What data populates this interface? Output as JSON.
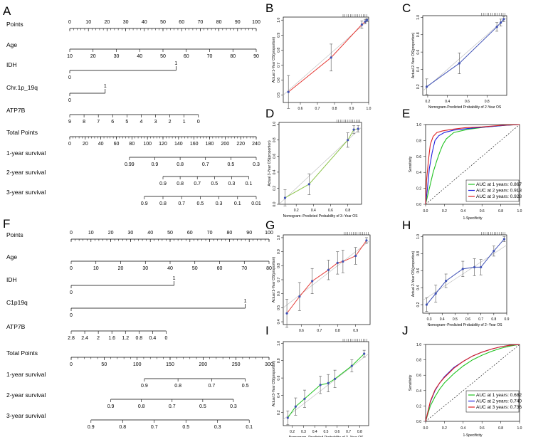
{
  "panel_letters": [
    "A",
    "B",
    "C",
    "D",
    "E",
    "F",
    "G",
    "H",
    "I",
    "J"
  ],
  "chart_data": [
    {
      "panel": "A",
      "type": "nomogram",
      "rows": [
        {
          "name": "Points",
          "from": 0,
          "to": 100,
          "ticks": [
            "0",
            "10",
            "20",
            "30",
            "40",
            "50",
            "60",
            "70",
            "80",
            "90",
            "100"
          ],
          "minor": true
        },
        {
          "name": "Age",
          "from": 0,
          "to": 100,
          "ticks": [
            "10",
            "20",
            "30",
            "40",
            "50",
            "60",
            "70",
            "80",
            "90"
          ]
        },
        {
          "name": "IDH",
          "bar": true,
          "low": "0",
          "high": "1",
          "from": 0,
          "to": 57
        },
        {
          "name": "Chr.1p_19q",
          "bar": true,
          "low": "0",
          "high": "1",
          "from": 0,
          "to": 19
        },
        {
          "name": "ATP7B",
          "from": 0,
          "to": 69,
          "ticks": [
            "9",
            "8",
            "7",
            "6",
            "5",
            "4",
            "3",
            "2",
            "1",
            "0"
          ]
        },
        {
          "name": "Total Points",
          "from": 0,
          "to": 100,
          "ticks": [
            "0",
            "20",
            "40",
            "60",
            "80",
            "100",
            "120",
            "140",
            "160",
            "180",
            "200",
            "220",
            "240"
          ],
          "minor": true
        },
        {
          "name": "1-year survival",
          "from": 32,
          "to": 100,
          "ticks": [
            "0.99",
            "0.9",
            "0.8",
            "0.7",
            "0.5",
            "0.3"
          ]
        },
        {
          "name": "2-year survival",
          "from": 50,
          "to": 96,
          "ticks": [
            "0.9",
            "0.8",
            "0.7",
            "0.5",
            "0.3",
            "0.1"
          ]
        },
        {
          "name": "3-year survival",
          "from": 40,
          "to": 100,
          "ticks": [
            "0.9",
            "0.8",
            "0.7",
            "0.5",
            "0.3",
            "0.1",
            "0.01"
          ]
        }
      ]
    },
    {
      "panel": "B",
      "type": "line",
      "x": [
        0.53,
        0.78,
        0.96,
        0.98,
        0.99
      ],
      "y": [
        0.52,
        0.75,
        0.97,
        0.99,
        1.0
      ],
      "err": [
        0.11,
        0.09,
        0.025,
        0.015,
        0.01
      ],
      "xlim": [
        0.5,
        1.0
      ],
      "ylim": [
        0.45,
        1.02
      ],
      "xticks": [
        0.6,
        0.7,
        0.8,
        0.9,
        1.0
      ],
      "yticks": [
        0.5,
        0.6,
        0.7,
        0.8,
        0.9,
        1.0
      ],
      "ylabel": "Actual 1-Year OS(proportion)",
      "xlabel": "",
      "color": "#e53935"
    },
    {
      "panel": "C",
      "type": "line",
      "x": [
        0.19,
        0.52,
        0.9,
        0.94,
        0.97
      ],
      "y": [
        0.2,
        0.47,
        0.89,
        0.94,
        0.98
      ],
      "err": [
        0.09,
        0.12,
        0.05,
        0.04,
        0.03
      ],
      "xlim": [
        0.15,
        1.0
      ],
      "ylim": [
        0.1,
        1.02
      ],
      "xticks": [
        0.2,
        0.4,
        0.6,
        0.8
      ],
      "yticks": [
        0.2,
        0.4,
        0.6,
        0.8,
        1.0
      ],
      "ylabel": "Actual 2-Year OS(proportion)",
      "xlabel": "Nomogram-Predicted Probability of 2-Year OS",
      "color": "#3f51b5"
    },
    {
      "panel": "D",
      "type": "line",
      "x": [
        0.07,
        0.35,
        0.8,
        0.87,
        0.92
      ],
      "y": [
        0.08,
        0.25,
        0.8,
        0.93,
        0.94
      ],
      "err": [
        0.1,
        0.13,
        0.09,
        0.05,
        0.04
      ],
      "xlim": [
        0.0,
        0.96
      ],
      "ylim": [
        0.0,
        1.02
      ],
      "xticks": [
        0.2,
        0.4,
        0.6,
        0.8
      ],
      "yticks": [
        0.0,
        0.2,
        0.4,
        0.6,
        0.8,
        1.0
      ],
      "ylabel": "Actual 3-Year OS(proportion)",
      "xlabel": "Nomogram−Predicted Probability of 3−Year OS",
      "color": "#8bc34a"
    },
    {
      "panel": "E",
      "type": "roc",
      "xlabel": "1-Specificity",
      "ylabel": "Sensitivity",
      "ticks": [
        "0.0",
        "0.2",
        "0.4",
        "0.6",
        "0.8",
        "1.0"
      ],
      "series": [
        {
          "label": "AUC at 1 years: 0.867",
          "color": "#22c322",
          "x": [
            0,
            0.02,
            0.05,
            0.08,
            0.12,
            0.15,
            0.18,
            0.22,
            0.3,
            0.45,
            0.65,
            0.85,
            1
          ],
          "y": [
            0,
            0.1,
            0.25,
            0.4,
            0.55,
            0.65,
            0.74,
            0.82,
            0.9,
            0.94,
            0.97,
            0.99,
            1
          ]
        },
        {
          "label": "AUC at 2 years: 0.913",
          "color": "#2222dd",
          "x": [
            0,
            0.02,
            0.04,
            0.07,
            0.1,
            0.14,
            0.2,
            0.3,
            0.45,
            0.65,
            0.85,
            1
          ],
          "y": [
            0,
            0.2,
            0.45,
            0.65,
            0.8,
            0.86,
            0.9,
            0.93,
            0.95,
            0.97,
            0.99,
            1
          ]
        },
        {
          "label": "AUC at 3 years: 0.928",
          "color": "#dd2222",
          "x": [
            0,
            0.01,
            0.03,
            0.05,
            0.08,
            0.12,
            0.18,
            0.28,
            0.42,
            0.6,
            0.8,
            1
          ],
          "y": [
            0,
            0.3,
            0.55,
            0.75,
            0.85,
            0.9,
            0.92,
            0.94,
            0.96,
            0.97,
            0.99,
            1
          ]
        }
      ]
    },
    {
      "panel": "F",
      "type": "nomogram",
      "rows": [
        {
          "name": "Points",
          "from": 0,
          "to": 100,
          "ticks": [
            "0",
            "10",
            "20",
            "30",
            "40",
            "50",
            "60",
            "70",
            "80",
            "90",
            "100"
          ],
          "minor": true
        },
        {
          "name": "Age",
          "from": 0,
          "to": 100,
          "ticks": [
            "0",
            "10",
            "20",
            "30",
            "40",
            "50",
            "60",
            "70",
            "80"
          ]
        },
        {
          "name": "IDH",
          "bar": true,
          "low": "0",
          "high": "1",
          "from": 0,
          "to": 52
        },
        {
          "name": "C1p19q",
          "bar": true,
          "low": "0",
          "high": "1",
          "from": 0,
          "to": 88
        },
        {
          "name": "ATP7B",
          "from": 0,
          "to": 48,
          "ticks": [
            "2.8",
            "2.4",
            "2",
            "1.6",
            "1.2",
            "0.8",
            "0.4",
            "0"
          ]
        },
        {
          "name": "Total Points",
          "from": 0,
          "to": 100,
          "ticks": [
            "0",
            "50",
            "100",
            "150",
            "200",
            "250",
            "300"
          ],
          "minor": true
        },
        {
          "name": "1-year survival",
          "from": 37,
          "to": 88,
          "ticks": [
            "0.9",
            "0.8",
            "0.7",
            "0.5"
          ]
        },
        {
          "name": "2-year survival",
          "from": 20,
          "to": 82,
          "ticks": [
            "0.9",
            "0.8",
            "0.7",
            "0.5",
            "0.3"
          ]
        },
        {
          "name": "3-year survival",
          "from": 10,
          "to": 90,
          "ticks": [
            "0.9",
            "0.8",
            "0.7",
            "0.5",
            "0.3",
            "0.1"
          ]
        }
      ]
    },
    {
      "panel": "G",
      "type": "line",
      "x": [
        0.52,
        0.59,
        0.66,
        0.75,
        0.8,
        0.83,
        0.9,
        0.96
      ],
      "y": [
        0.46,
        0.58,
        0.69,
        0.77,
        0.82,
        0.83,
        0.87,
        0.98
      ],
      "err": [
        0.1,
        0.1,
        0.09,
        0.07,
        0.08,
        0.08,
        0.06,
        0.02
      ],
      "xlim": [
        0.5,
        0.98
      ],
      "ylim": [
        0.38,
        1.02
      ],
      "xticks": [
        0.6,
        0.7,
        0.8,
        0.9
      ],
      "yticks": [
        0.4,
        0.5,
        0.6,
        0.7,
        0.8,
        0.9,
        1.0
      ],
      "ylabel": "Actual 1-Year OS(proportion)",
      "xlabel": "",
      "color": "#e53935"
    },
    {
      "panel": "H",
      "type": "line",
      "x": [
        0.28,
        0.35,
        0.43,
        0.56,
        0.65,
        0.7,
        0.8,
        0.88
      ],
      "y": [
        0.2,
        0.33,
        0.48,
        0.62,
        0.64,
        0.64,
        0.83,
        0.97
      ],
      "err": [
        0.08,
        0.1,
        0.08,
        0.09,
        0.1,
        0.09,
        0.06,
        0.03
      ],
      "xlim": [
        0.25,
        0.9
      ],
      "ylim": [
        0.1,
        1.02
      ],
      "xticks": [
        0.3,
        0.4,
        0.5,
        0.6,
        0.7,
        0.8,
        0.9
      ],
      "yticks": [
        0.2,
        0.4,
        0.6,
        0.8,
        1.0
      ],
      "ylabel": "Actual 2-Year OS(proportion)",
      "xlabel": "Nomogram−Predicted Probability of 2−Year OS",
      "color": "#3f51b5"
    },
    {
      "panel": "I",
      "type": "line",
      "x": [
        0.16,
        0.23,
        0.31,
        0.45,
        0.52,
        0.58,
        0.73,
        0.84
      ],
      "y": [
        0.14,
        0.27,
        0.36,
        0.52,
        0.54,
        0.59,
        0.74,
        0.88
      ],
      "err": [
        0.08,
        0.1,
        0.1,
        0.1,
        0.1,
        0.1,
        0.07,
        0.04
      ],
      "xlim": [
        0.12,
        0.88
      ],
      "ylim": [
        0.05,
        1.02
      ],
      "xticks": [
        0.2,
        0.3,
        0.4,
        0.5,
        0.6,
        0.7,
        0.8
      ],
      "yticks": [
        0.2,
        0.4,
        0.6,
        0.8,
        1.0
      ],
      "ylabel": "Actual 3-Year OS(proportion)",
      "xlabel": "Nomogram−Predicted Probability of 3−Year OS",
      "color": "#22c322"
    },
    {
      "panel": "J",
      "type": "roc",
      "xlabel": "1-Specificity",
      "ylabel": "Sensitivity",
      "ticks": [
        "0.0",
        "0.2",
        "0.4",
        "0.6",
        "0.8",
        "1.0"
      ],
      "series": [
        {
          "label": "AUC at 1 years: 0.682",
          "color": "#22c322",
          "x": [
            0,
            0.05,
            0.1,
            0.15,
            0.2,
            0.3,
            0.4,
            0.5,
            0.6,
            0.7,
            0.8,
            0.9,
            1
          ],
          "y": [
            0,
            0.2,
            0.32,
            0.42,
            0.5,
            0.62,
            0.72,
            0.8,
            0.86,
            0.91,
            0.95,
            0.98,
            1
          ]
        },
        {
          "label": "AUC at 2 years: 0.740",
          "color": "#2222dd",
          "x": [
            0,
            0.05,
            0.1,
            0.15,
            0.2,
            0.3,
            0.4,
            0.5,
            0.6,
            0.7,
            0.8,
            0.9,
            1
          ],
          "y": [
            0,
            0.25,
            0.4,
            0.5,
            0.58,
            0.7,
            0.78,
            0.85,
            0.9,
            0.94,
            0.97,
            0.99,
            1
          ]
        },
        {
          "label": "AUC at 3 years: 0.736",
          "color": "#dd2222",
          "x": [
            0,
            0.05,
            0.1,
            0.15,
            0.2,
            0.3,
            0.4,
            0.5,
            0.6,
            0.7,
            0.8,
            0.9,
            1
          ],
          "y": [
            0,
            0.26,
            0.41,
            0.5,
            0.57,
            0.69,
            0.78,
            0.85,
            0.9,
            0.94,
            0.97,
            0.99,
            1
          ]
        }
      ]
    }
  ]
}
